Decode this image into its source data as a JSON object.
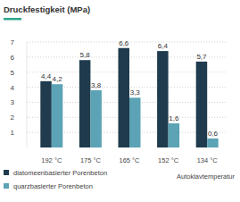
{
  "chart_data": {
    "type": "bar",
    "title": "Druckfestigkeit (MPa)",
    "x_label": "Autoklavtemperatur",
    "categories": [
      "192 °C",
      "175 °C",
      "165 °C",
      "152 °C",
      "134 °C"
    ],
    "series": [
      {
        "name": "diatomeenbasierter Porenbeton",
        "color": "#1f3b4d",
        "values": [
          4.4,
          5.8,
          6.6,
          6.4,
          5.7
        ],
        "value_labels": [
          "4,4",
          "5,8",
          "6,6",
          "6,4",
          "5,7"
        ]
      },
      {
        "name": "quarzbasierter Porenbeton",
        "color": "#5ba3b5",
        "values": [
          4.2,
          3.8,
          3.3,
          1.6,
          0.6
        ],
        "value_labels": [
          "4,2",
          "3,8",
          "3,3",
          "1,6",
          "0,6"
        ]
      }
    ],
    "ylim": [
      0,
      7
    ],
    "yticks": [
      1,
      2,
      3,
      4,
      5,
      6,
      7
    ],
    "grid": true,
    "legend": "bottom left",
    "data_labels": true
  }
}
